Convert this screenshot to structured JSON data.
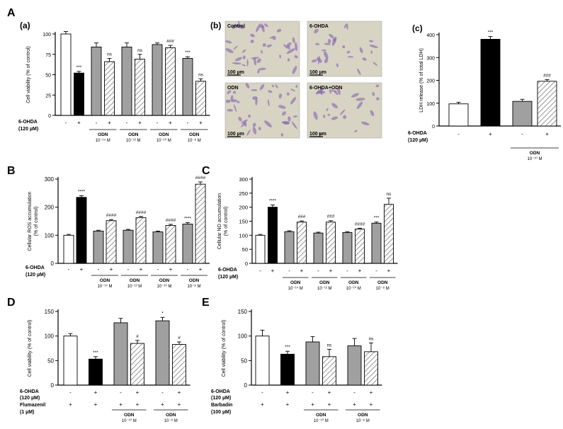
{
  "figure": {
    "section_letters": [
      "A",
      "B",
      "C",
      "D",
      "E"
    ],
    "panel_letters": [
      "(a)",
      "(b)",
      "(c)"
    ],
    "odn_label": "ODN",
    "odhda_label": "6-OHDA",
    "conc_120": "(120 µM)",
    "flumazenil_label": "Flumazenil",
    "flumazenil_conc": "(1 µM)",
    "barbadin_label": "Barbadin",
    "barbadin_conc": "(100 µM)",
    "plus": "+",
    "minus": "-",
    "exp": {
      "m14": "10⁻¹⁴ M",
      "m12": "10⁻¹² M",
      "m10": "10⁻¹⁰ M",
      "m8": "10⁻⁸ M"
    },
    "colors": {
      "white": "#ffffff",
      "black": "#000000",
      "gray": "#a0a0a0",
      "hatch": "#888888",
      "micro_bg": "#d8d4c4",
      "cell": "#8a6cb0"
    }
  },
  "micrographs": [
    {
      "label": "Control",
      "scale": "100 µm"
    },
    {
      "label": "6-OHDA",
      "scale": "100 µm"
    },
    {
      "label": "ODN",
      "scale": "100 µm"
    },
    {
      "label": "6-OHDA+ODN",
      "scale": "100 µm"
    }
  ],
  "chart_data": [
    {
      "id": "Aa",
      "type": "bar",
      "ylabel": "Cell viability (% of control)",
      "ylim": [
        0,
        100
      ],
      "yticks": [
        0,
        25,
        50,
        75,
        100
      ],
      "bars": [
        {
          "value": 100,
          "err": 3,
          "style": "white"
        },
        {
          "value": 52,
          "err": 2,
          "style": "black",
          "sig": "***"
        },
        {
          "value": 84,
          "err": 5,
          "style": "gray"
        },
        {
          "value": 66,
          "err": 4,
          "style": "hatch",
          "sig": "ns"
        },
        {
          "value": 84,
          "err": 5,
          "style": "gray"
        },
        {
          "value": 69,
          "err": 6,
          "style": "hatch",
          "sig": "ns"
        },
        {
          "value": 87,
          "err": 2,
          "style": "gray"
        },
        {
          "value": 83,
          "err": 3,
          "style": "hatch",
          "sig": "###"
        },
        {
          "value": 70,
          "err": 2,
          "style": "gray",
          "sig": "***"
        },
        {
          "value": 42,
          "err": 3,
          "style": "hatch",
          "sig": "ns"
        }
      ]
    },
    {
      "id": "Ac",
      "type": "bar",
      "ylabel": "LDH release (% of total LDH)",
      "ylim": [
        0,
        400
      ],
      "yticks": [
        0,
        100,
        200,
        300,
        400
      ],
      "bars": [
        {
          "value": 97,
          "err": 7,
          "style": "white"
        },
        {
          "value": 380,
          "err": 12,
          "style": "black",
          "sig": "***"
        },
        {
          "value": 108,
          "err": 9,
          "style": "gray"
        },
        {
          "value": 196,
          "err": 7,
          "style": "hatch",
          "sig": "###"
        }
      ]
    },
    {
      "id": "B",
      "type": "bar",
      "ylabel": "Cellular ROS accumulation (% of control)",
      "ylim": [
        0,
        300
      ],
      "yticks": [
        0,
        100,
        200,
        300
      ],
      "bars": [
        {
          "value": 100,
          "err": 3,
          "style": "white"
        },
        {
          "value": 235,
          "err": 6,
          "style": "black",
          "sig": "****"
        },
        {
          "value": 115,
          "err": 3,
          "style": "gray"
        },
        {
          "value": 152,
          "err": 4,
          "style": "hatch",
          "sig": "####"
        },
        {
          "value": 118,
          "err": 3,
          "style": "gray"
        },
        {
          "value": 163,
          "err": 4,
          "style": "hatch",
          "sig": "####"
        },
        {
          "value": 112,
          "err": 3,
          "style": "gray"
        },
        {
          "value": 135,
          "err": 4,
          "style": "hatch",
          "sig": "####"
        },
        {
          "value": 140,
          "err": 5,
          "style": "gray",
          "sig": "****"
        },
        {
          "value": 282,
          "err": 8,
          "style": "hatch",
          "sig": "####"
        }
      ]
    },
    {
      "id": "C",
      "type": "bar",
      "ylabel": "Cellular NO accumulation (% of control)",
      "ylim": [
        0,
        300
      ],
      "yticks": [
        0,
        50,
        100,
        150,
        200,
        250,
        300
      ],
      "bars": [
        {
          "value": 100,
          "err": 3,
          "style": "white"
        },
        {
          "value": 200,
          "err": 8,
          "style": "black",
          "sig": "****"
        },
        {
          "value": 113,
          "err": 3,
          "style": "gray"
        },
        {
          "value": 147,
          "err": 4,
          "style": "hatch",
          "sig": "###"
        },
        {
          "value": 108,
          "err": 3,
          "style": "gray"
        },
        {
          "value": 147,
          "err": 5,
          "style": "hatch",
          "sig": "###"
        },
        {
          "value": 110,
          "err": 3,
          "style": "gray"
        },
        {
          "value": 122,
          "err": 3,
          "style": "hatch",
          "sig": "####"
        },
        {
          "value": 143,
          "err": 4,
          "style": "gray",
          "sig": "***"
        },
        {
          "value": 210,
          "err": 22,
          "style": "hatch",
          "sig": "ns"
        }
      ]
    },
    {
      "id": "D",
      "type": "bar",
      "ylabel": "Cell viability (% of control)",
      "ylim": [
        0,
        150
      ],
      "yticks": [
        0,
        50,
        100,
        150
      ],
      "bars": [
        {
          "value": 100,
          "err": 5,
          "style": "white"
        },
        {
          "value": 53,
          "err": 5,
          "style": "black",
          "sig": "***"
        },
        {
          "value": 127,
          "err": 9,
          "style": "gray"
        },
        {
          "value": 85,
          "err": 6,
          "style": "hatch",
          "sig": "#"
        },
        {
          "value": 131,
          "err": 7,
          "style": "gray",
          "sig": "*"
        },
        {
          "value": 83,
          "err": 5,
          "style": "hatch",
          "sig": "#"
        }
      ]
    },
    {
      "id": "E",
      "type": "bar",
      "ylabel": "Cell viability (% of control)",
      "ylim": [
        0,
        150
      ],
      "yticks": [
        0,
        50,
        100,
        150
      ],
      "bars": [
        {
          "value": 100,
          "err": 12,
          "style": "white"
        },
        {
          "value": 63,
          "err": 6,
          "style": "black",
          "sig": "***"
        },
        {
          "value": 88,
          "err": 11,
          "style": "gray"
        },
        {
          "value": 58,
          "err": 15,
          "style": "hatch",
          "sig": "ns"
        },
        {
          "value": 80,
          "err": 15,
          "style": "gray"
        },
        {
          "value": 68,
          "err": 18,
          "style": "hatch",
          "sig": "ns"
        }
      ]
    }
  ]
}
